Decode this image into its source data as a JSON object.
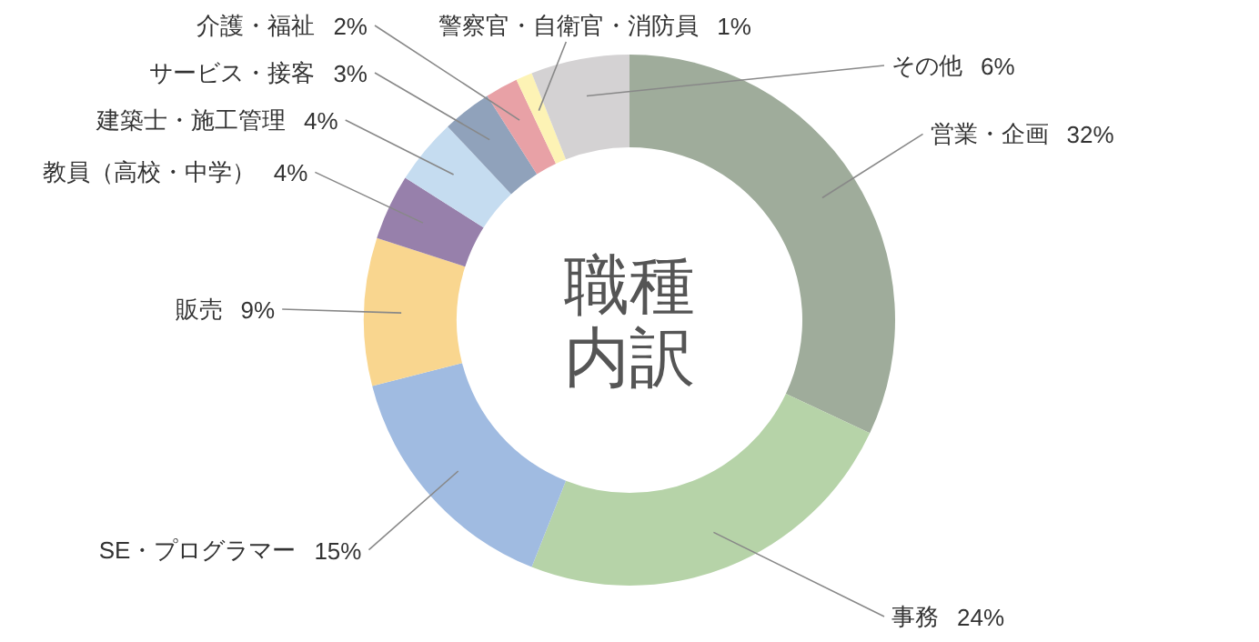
{
  "chart_data": {
    "type": "donut",
    "title": "職種内訳",
    "categories": [
      "営業・企画",
      "事務",
      "SE・プログラマー",
      "販売",
      "教員（高校・中学）",
      "建築士・施工管理",
      "サービス・接客",
      "介護・福祉",
      "警察官・自衛官・消防員",
      "その他"
    ],
    "values": [
      32,
      24,
      15,
      9,
      4,
      4,
      3,
      2,
      1,
      6
    ],
    "value_labels": [
      "32%",
      "24%",
      "15%",
      "9%",
      "4%",
      "4%",
      "3%",
      "2%",
      "1%",
      "6%"
    ],
    "colors": [
      "#9fac9b",
      "#b6d3a8",
      "#a0bbe1",
      "#f9d68f",
      "#9780ab",
      "#c5dcf0",
      "#90a2bb",
      "#e8a1a6",
      "#fdf3b5",
      "#d4d2d3"
    ]
  }
}
